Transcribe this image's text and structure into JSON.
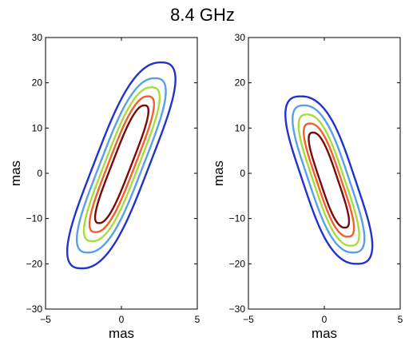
{
  "figure": {
    "title": "8.4 GHz"
  },
  "chart_data": [
    {
      "type": "contour",
      "title": "",
      "xlabel": "mas",
      "ylabel": "mas",
      "xlim": [
        -5,
        5
      ],
      "ylim": [
        -30,
        30
      ],
      "xticks": [
        -5,
        0,
        5
      ],
      "yticks": [
        -30,
        -20,
        -10,
        0,
        10,
        20,
        30
      ],
      "contours": [
        {
          "color": "#2233cc",
          "center": [
            0,
            1.8
          ],
          "half_length": 23.0,
          "half_width": 1.85,
          "extent": [
            -21,
            24.5
          ]
        },
        {
          "color": "#5aa0e8",
          "center": [
            0,
            1.8
          ],
          "half_length": 19.5,
          "half_width": 1.45,
          "extent": [
            -17.5,
            21
          ]
        },
        {
          "color": "#a8dc3c",
          "center": [
            0,
            1.8
          ],
          "half_length": 16.8,
          "half_width": 1.15,
          "extent": [
            -15,
            19
          ]
        },
        {
          "color": "#f2602a",
          "center": [
            0,
            1.8
          ],
          "half_length": 14.8,
          "half_width": 0.9,
          "extent": [
            -13,
            17
          ]
        },
        {
          "color": "#7a0a0a",
          "center": [
            0,
            1.8
          ],
          "half_length": 13.0,
          "half_width": 0.65,
          "extent": [
            -11,
            15
          ]
        }
      ],
      "tilt_x_per_mas_y": 0.115
    },
    {
      "type": "contour",
      "title": "",
      "xlabel": "mas",
      "ylabel": "mas",
      "xlim": [
        -5,
        5
      ],
      "ylim": [
        -30,
        30
      ],
      "xticks": [
        -5,
        0,
        5
      ],
      "yticks": [
        -30,
        -20,
        -10,
        0,
        10,
        20,
        30
      ],
      "contours": [
        {
          "color": "#2233cc",
          "center": [
            0.3,
            -1.5
          ],
          "half_length": 18.5,
          "half_width": 1.75,
          "extent": [
            -20,
            17
          ]
        },
        {
          "color": "#5aa0e8",
          "center": [
            0.3,
            -1.5
          ],
          "half_length": 16.0,
          "half_width": 1.35,
          "extent": [
            -17.5,
            15
          ]
        },
        {
          "color": "#a8dc3c",
          "center": [
            0.3,
            -1.5
          ],
          "half_length": 14.2,
          "half_width": 1.05,
          "extent": [
            -16,
            13
          ]
        },
        {
          "color": "#f2602a",
          "center": [
            0.3,
            -1.5
          ],
          "half_length": 12.6,
          "half_width": 0.82,
          "extent": [
            -14,
            11
          ]
        },
        {
          "color": "#7a0a0a",
          "center": [
            0.3,
            -1.5
          ],
          "half_length": 10.8,
          "half_width": 0.6,
          "extent": [
            -12,
            9
          ]
        }
      ],
      "tilt_x_per_mas_y": -0.1
    }
  ]
}
